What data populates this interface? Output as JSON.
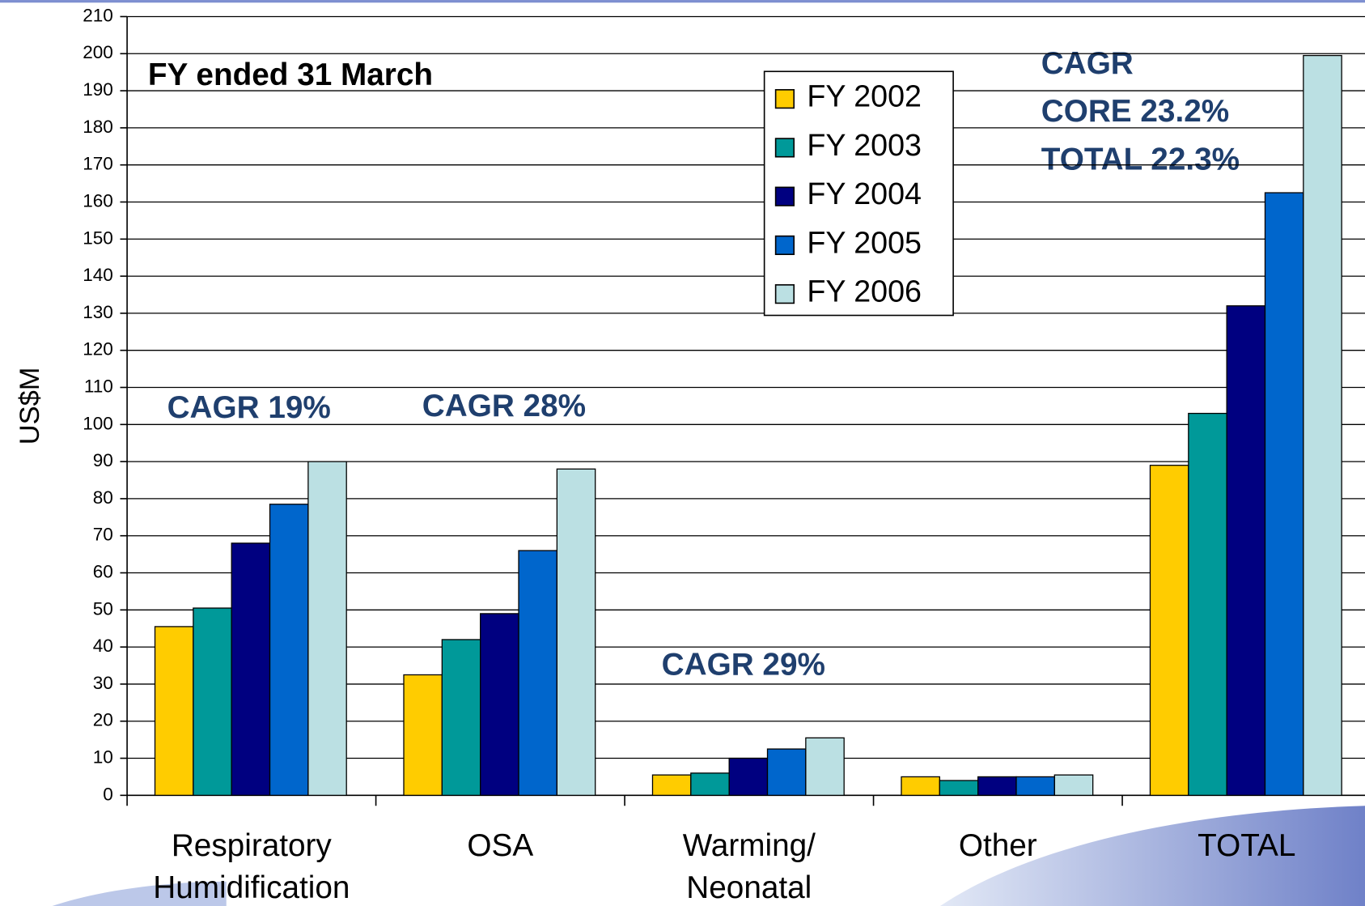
{
  "chart_data": {
    "type": "bar",
    "y_label": "US$M",
    "annotations": [
      "FY ended 31 March",
      "CAGR 19%",
      "CAGR 28%",
      "CAGR 29%",
      "CAGR",
      "CORE  23.2%",
      "TOTAL 22.3%"
    ],
    "categories": [
      "Respiratory\nHumidification",
      "OSA",
      "Warming/\nNeonatal",
      "Other",
      "TOTAL"
    ],
    "series": [
      {
        "name": "FY 2002",
        "color": "#FFCC00",
        "values": [
          45.5,
          32.5,
          5.5,
          5,
          89
        ]
      },
      {
        "name": "FY 2003",
        "color": "#009999",
        "values": [
          50.5,
          42,
          6,
          4,
          103
        ]
      },
      {
        "name": "FY 2004",
        "color": "#000080",
        "values": [
          68,
          49,
          10,
          5,
          132
        ]
      },
      {
        "name": "FY 2005",
        "color": "#0066CC",
        "values": [
          78.5,
          66,
          12.5,
          5,
          162.5
        ]
      },
      {
        "name": "FY 2006",
        "color": "#BBE0E3",
        "values": [
          90,
          88,
          15.5,
          5.5,
          199.5
        ]
      }
    ],
    "ylim": [
      0,
      210
    ],
    "yticks": [
      0,
      10,
      20,
      30,
      40,
      50,
      60,
      70,
      80,
      90,
      100,
      110,
      120,
      130,
      140,
      150,
      160,
      170,
      180,
      190,
      200,
      210
    ],
    "grid": true,
    "legend": "top-center"
  }
}
